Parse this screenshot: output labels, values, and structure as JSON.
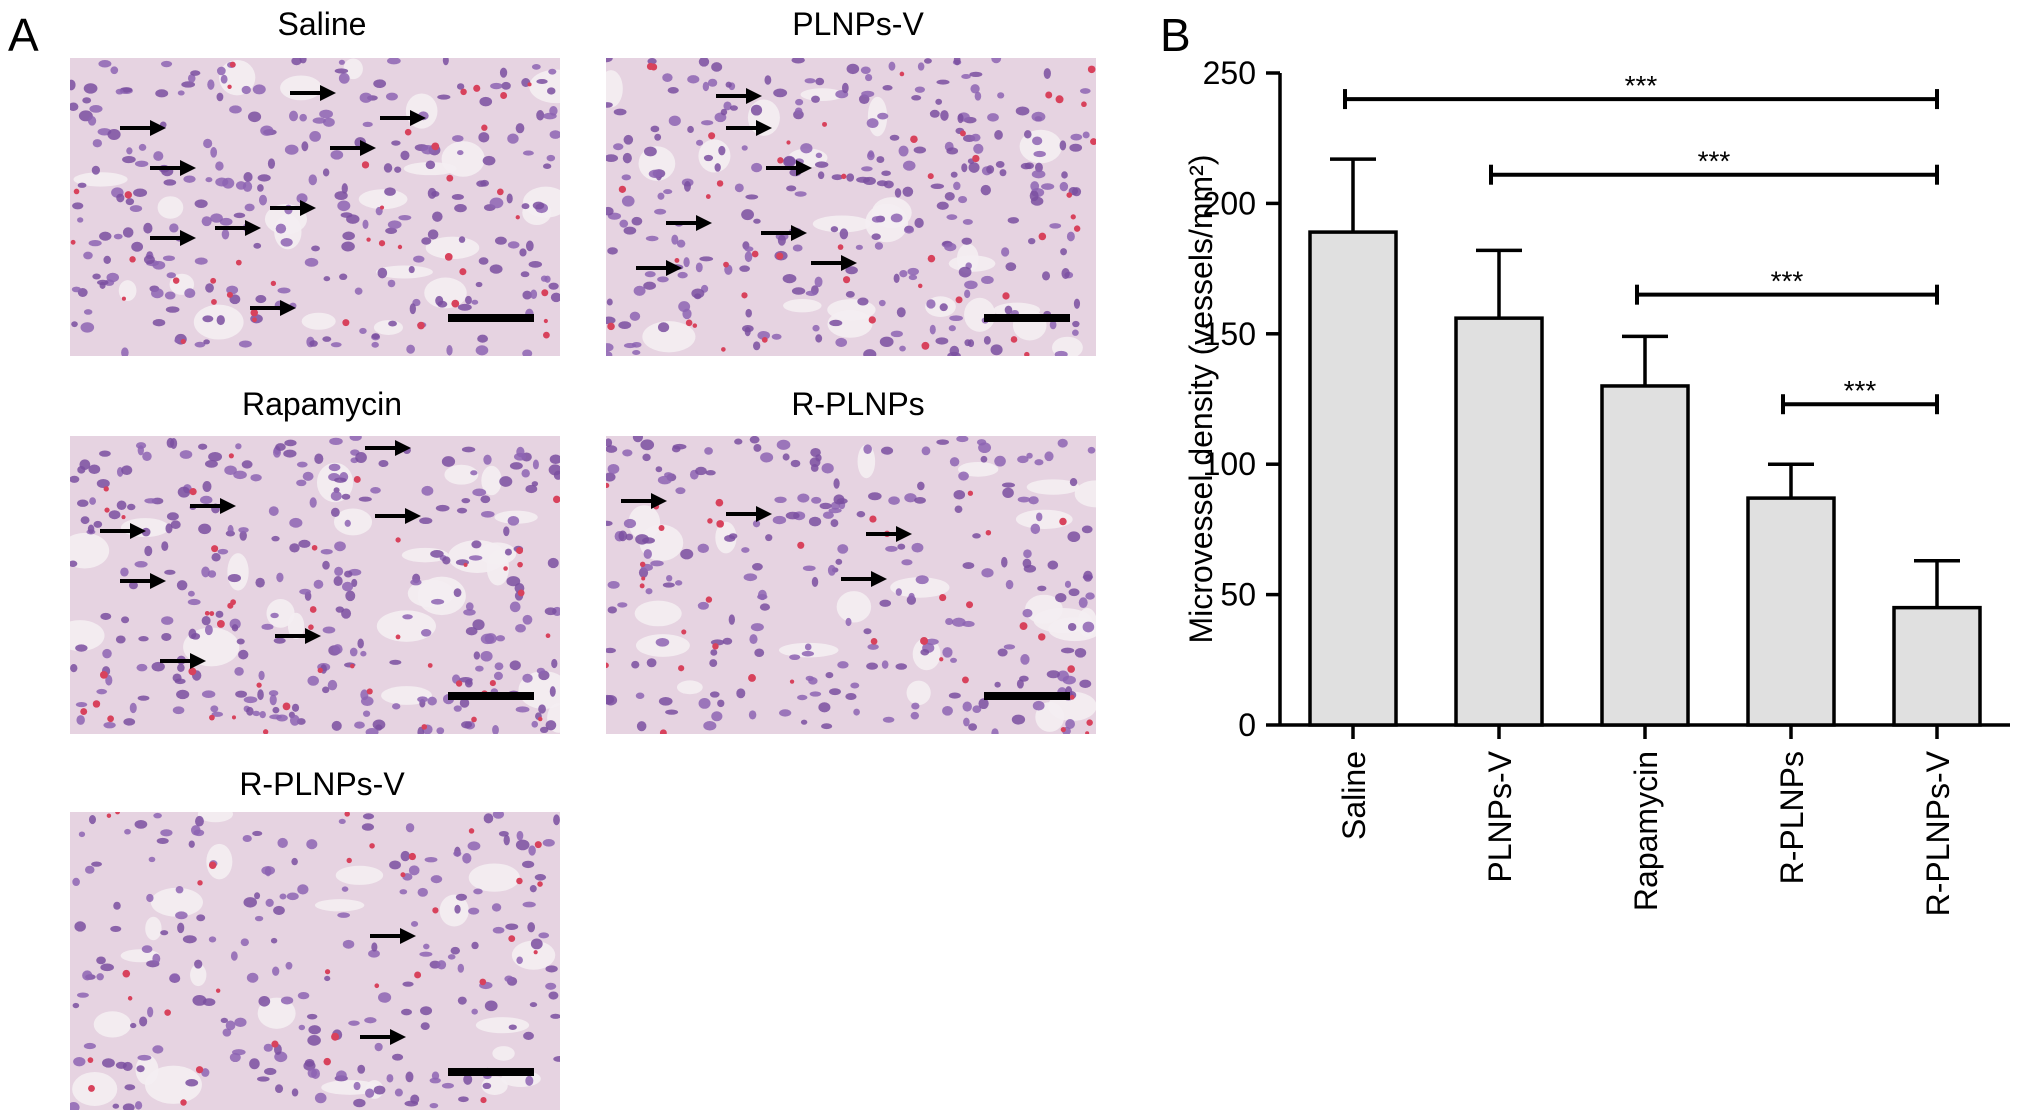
{
  "panel_a": {
    "letter": "A",
    "images": [
      {
        "title": "Saline"
      },
      {
        "title": "PLNPs-V"
      },
      {
        "title": "Rapamycin"
      },
      {
        "title": "R-PLNPs"
      },
      {
        "title": "R-PLNPs-V"
      }
    ]
  },
  "panel_b": {
    "letter": "B"
  },
  "colors": {
    "bar_fill": "#e0e0e0",
    "tissue_bg": "#e6d3e1",
    "nucleus": "#7a4fa0",
    "rbc": "#d8425c"
  },
  "chart_data": {
    "type": "bar",
    "categories": [
      "Saline",
      "PLNPs-V",
      "Rapamycin",
      "R-PLNPs",
      "R-PLNPs-V"
    ],
    "values": [
      189,
      156,
      130,
      87,
      45
    ],
    "errors": [
      28,
      26,
      19,
      13,
      18
    ],
    "ylabel": "Microvessel density (vessels/mm²)",
    "ylim": [
      0,
      250
    ],
    "yticks": [
      0,
      50,
      100,
      150,
      200,
      250
    ],
    "significance": [
      {
        "from": 0,
        "to": 4,
        "y": 240,
        "label": "***"
      },
      {
        "from": 1,
        "to": 4,
        "y": 211,
        "label": "***"
      },
      {
        "from": 2,
        "to": 4,
        "y": 165,
        "label": "***"
      },
      {
        "from": 3,
        "to": 4,
        "y": 123,
        "label": "***"
      }
    ]
  }
}
